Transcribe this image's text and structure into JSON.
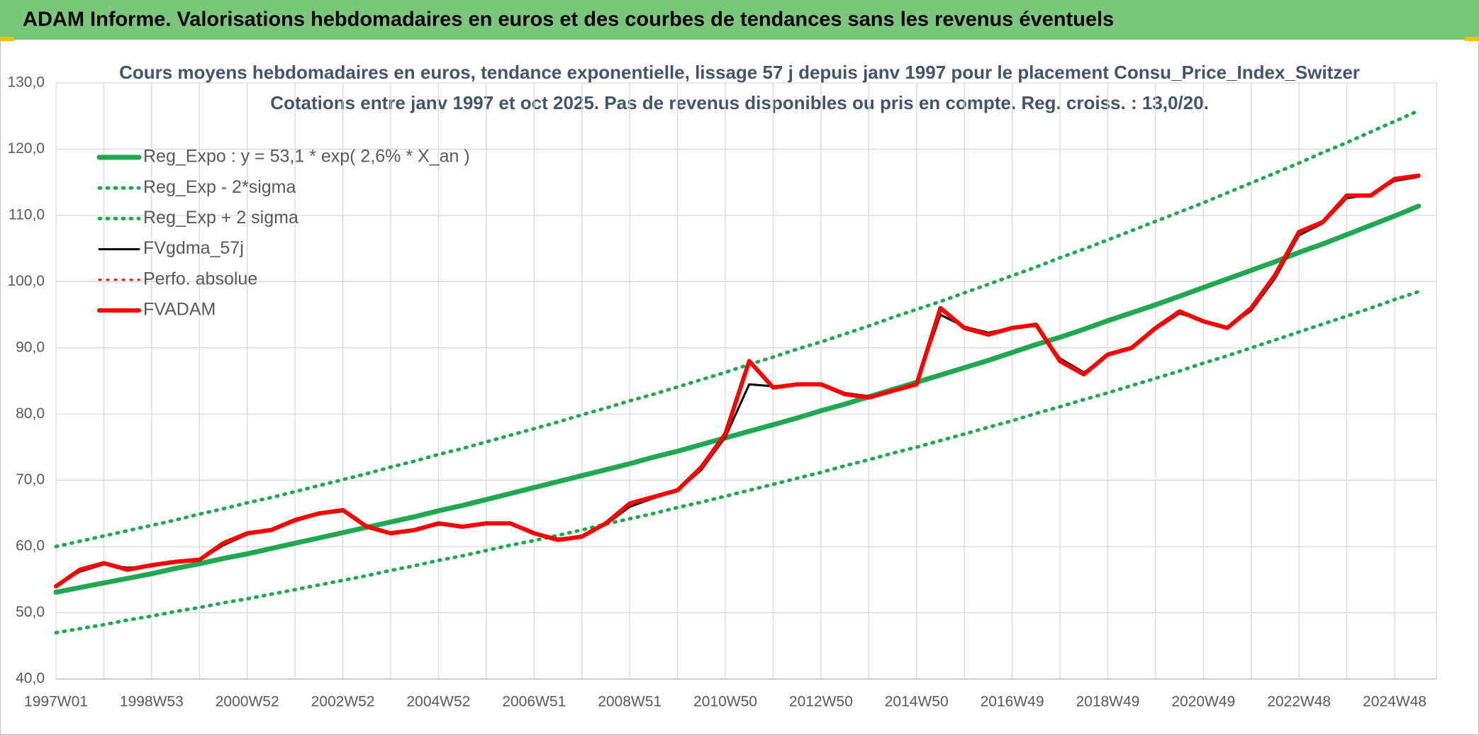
{
  "header": {
    "title": "ADAM Informe. Valorisations hebdomadaires en euros et des courbes de tendances sans les revenus éventuels"
  },
  "chart_data": {
    "type": "line",
    "title": "Cours moyens hebdomadaires en euros, tendance exponentielle, lissage 57 j depuis janv 1997 pour le placement Consu_Price_Index_Switzer",
    "subtitle": "Cotations entre janv 1997 et oct 2025. Pas de revenus disponibles ou pris en compte. Reg. croiss. : 13,0/20.",
    "categories": [
      "1997W01",
      null,
      null,
      null,
      "1998W53",
      null,
      null,
      null,
      "2000W52",
      null,
      null,
      null,
      "2002W52",
      null,
      null,
      null,
      "2004W52",
      null,
      null,
      null,
      "2006W51",
      null,
      null,
      null,
      "2008W51",
      null,
      null,
      null,
      "2010W50",
      null,
      null,
      null,
      "2012W50",
      null,
      null,
      null,
      "2014W50",
      null,
      null,
      null,
      "2016W49",
      null,
      null,
      null,
      "2018W49",
      null,
      null,
      null,
      "2020W49",
      null,
      null,
      null,
      "2022W48",
      null,
      null,
      null,
      "2024W48",
      null
    ],
    "ylim": [
      40,
      130
    ],
    "yticks": [
      {
        "value": 40,
        "label": "40,0"
      },
      {
        "value": 50,
        "label": "50,0"
      },
      {
        "value": 60,
        "label": "60,0"
      },
      {
        "value": 70,
        "label": "70,0"
      },
      {
        "value": 80,
        "label": "80,0"
      },
      {
        "value": 90,
        "label": "90,0"
      },
      {
        "value": 100,
        "label": "100,0"
      },
      {
        "value": 110,
        "label": "110,0"
      },
      {
        "value": 120,
        "label": "120,0"
      },
      {
        "value": 130,
        "label": "130,0"
      }
    ],
    "grid": true,
    "legend": "upper left",
    "series": [
      {
        "name": "Reg_Expo : y = 53,1 * exp( 2,6% *  X_an )",
        "color": "#1fa84f",
        "style": "solid",
        "values": [
          53.1,
          53.8,
          54.5,
          55.2,
          55.9,
          56.7,
          57.4,
          58.2,
          58.9,
          59.7,
          60.5,
          61.3,
          62.1,
          62.9,
          63.7,
          64.5,
          65.4,
          66.2,
          67.1,
          68.0,
          68.9,
          69.8,
          70.7,
          71.6,
          72.5,
          73.5,
          74.4,
          75.4,
          76.4,
          77.4,
          78.4,
          79.4,
          80.5,
          81.5,
          82.6,
          83.7,
          84.8,
          85.9,
          87.0,
          88.1,
          89.3,
          90.5,
          91.6,
          92.8,
          94.1,
          95.3,
          96.5,
          97.8,
          99.1,
          100.4,
          101.7,
          103.0,
          104.4,
          105.7,
          107.1,
          108.5,
          109.9,
          111.4
        ]
      },
      {
        "name": "Reg_Exp - 2*sigma",
        "color": "#1fa84f",
        "style": "dotted",
        "values": [
          47.0,
          47.6,
          48.2,
          48.9,
          49.5,
          50.2,
          50.8,
          51.5,
          52.1,
          52.8,
          53.5,
          54.2,
          54.9,
          55.6,
          56.4,
          57.1,
          57.9,
          58.6,
          59.4,
          60.2,
          60.9,
          61.7,
          62.5,
          63.4,
          64.2,
          65.0,
          65.9,
          66.7,
          67.6,
          68.5,
          69.4,
          70.3,
          71.2,
          72.2,
          73.1,
          74.1,
          75.0,
          76.0,
          77.0,
          78.0,
          79.0,
          80.1,
          81.1,
          82.2,
          83.2,
          84.3,
          85.4,
          86.5,
          87.7,
          88.8,
          90.0,
          91.2,
          92.4,
          93.6,
          94.8,
          96.0,
          97.3,
          98.5
        ]
      },
      {
        "name": "Reg_Exp + 2 sigma",
        "color": "#1fa84f",
        "style": "dotted",
        "values": [
          60.0,
          60.8,
          61.6,
          62.4,
          63.2,
          64.0,
          64.9,
          65.7,
          66.6,
          67.4,
          68.3,
          69.2,
          70.1,
          71.0,
          72.0,
          72.9,
          73.9,
          74.8,
          75.8,
          76.8,
          77.8,
          78.8,
          79.9,
          80.9,
          82.0,
          83.0,
          84.1,
          85.2,
          86.3,
          87.5,
          88.6,
          89.8,
          90.9,
          92.1,
          93.3,
          94.6,
          95.8,
          97.0,
          98.3,
          99.6,
          100.9,
          102.2,
          103.6,
          104.9,
          106.3,
          107.7,
          109.1,
          110.5,
          111.9,
          113.4,
          114.9,
          116.4,
          117.9,
          119.5,
          121.0,
          122.6,
          124.2,
          125.8
        ]
      },
      {
        "name": "FVgdma_57j",
        "color": "#000000",
        "style": "solid",
        "values": [
          54.2,
          56.2,
          57.3,
          56.8,
          57.0,
          57.6,
          57.9,
          60.2,
          61.8,
          62.4,
          63.8,
          64.9,
          65.3,
          63.2,
          62.1,
          62.4,
          63.3,
          63.1,
          63.4,
          63.4,
          62.1,
          61.2,
          61.5,
          63.3,
          66.0,
          67.3,
          68.4,
          71.6,
          76.5,
          84.5,
          84.2,
          84.5,
          84.4,
          83.2,
          82.7,
          83.4,
          84.5,
          95.0,
          93.2,
          92.3,
          93.0,
          93.3,
          88.4,
          86.3,
          88.8,
          89.9,
          92.8,
          95.2,
          94.1,
          93.1,
          95.6,
          100.5,
          107.0,
          108.8,
          112.6,
          113.1,
          115.2,
          115.8
        ]
      },
      {
        "name": "Perfo. absolue",
        "color": "#ff0000",
        "style": "dotted",
        "values": [
          null,
          null,
          null,
          null,
          null,
          null,
          null,
          null,
          null,
          null,
          null,
          null,
          null,
          null,
          null,
          null,
          null,
          null,
          null,
          null,
          null,
          null,
          null,
          null,
          null,
          null,
          null,
          null,
          null,
          null,
          null,
          null,
          null,
          null,
          null,
          null,
          null,
          null,
          null,
          null,
          null,
          null,
          null,
          null,
          null,
          null,
          null,
          null,
          null,
          null,
          null,
          null,
          null,
          null,
          null,
          null,
          null,
          null
        ]
      },
      {
        "name": "FVADAM",
        "color": "#ff0000",
        "style": "solid",
        "values": [
          54.0,
          56.5,
          57.5,
          56.5,
          57.2,
          57.7,
          58.0,
          60.5,
          62.0,
          62.5,
          64.0,
          65.0,
          65.5,
          63.0,
          62.0,
          62.5,
          63.5,
          63.0,
          63.5,
          63.5,
          62.0,
          61.0,
          61.5,
          63.5,
          66.5,
          67.5,
          68.5,
          72.0,
          77.0,
          88.0,
          84.0,
          84.5,
          84.5,
          83.0,
          82.5,
          83.5,
          84.5,
          96.0,
          93.0,
          92.0,
          93.0,
          93.5,
          88.0,
          86.0,
          89.0,
          90.0,
          93.0,
          95.5,
          94.0,
          93.0,
          96.0,
          101.0,
          107.5,
          109.0,
          113.0,
          113.0,
          115.5,
          116.0
        ]
      }
    ]
  }
}
